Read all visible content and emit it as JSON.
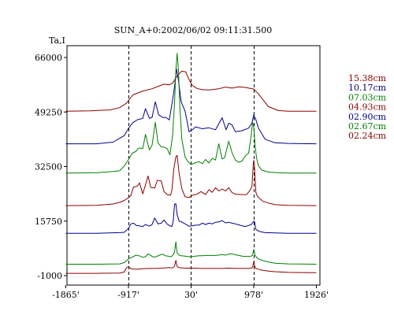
{
  "chart_data": {
    "type": "line",
    "title": "SUN_A+0:2002/06/02 09:11:31.500",
    "ylabel": "Ta,I",
    "xlabel": "",
    "xlim": [
      -1865,
      1926
    ],
    "ylim": [
      -1000,
      66000
    ],
    "x_ticks": [
      {
        "value": -1865,
        "label": "-1865'"
      },
      {
        "value": -917,
        "label": "-917'"
      },
      {
        "value": 30,
        "label": "30'"
      },
      {
        "value": 978,
        "label": "978'"
      },
      {
        "value": 1926,
        "label": "1926'"
      }
    ],
    "y_ticks": [
      {
        "value": 66000,
        "label": "66000"
      },
      {
        "value": 49250,
        "label": "49250"
      },
      {
        "value": 32500,
        "label": "32500"
      },
      {
        "value": 15750,
        "label": "15750"
      },
      {
        "value": -1000,
        "label": "-1000"
      }
    ],
    "vlines": [
      -917,
      30,
      978
    ],
    "grid": false,
    "legend_position": "right",
    "series": [
      {
        "name": "15.38cm",
        "color": "#8b0000",
        "x": [
          -1865,
          -1500,
          -1200,
          -1050,
          -950,
          -850,
          -700,
          -560,
          -450,
          -380,
          -300,
          -250,
          -180,
          -110,
          -50,
          0,
          50,
          120,
          200,
          300,
          450,
          550,
          650,
          750,
          850,
          978,
          1050,
          1200,
          1350,
          1500,
          1926
        ],
        "y": [
          49500,
          49600,
          49900,
          50600,
          51900,
          54500,
          55700,
          56400,
          57300,
          57800,
          57600,
          58100,
          60400,
          61800,
          61600,
          59200,
          57400,
          56500,
          56100,
          56000,
          56400,
          56900,
          56600,
          57000,
          56800,
          56300,
          54800,
          50900,
          49700,
          49500,
          49500
        ]
      },
      {
        "name": "10.17cm",
        "color": "#00008b",
        "x": [
          -1865,
          -1400,
          -1150,
          -980,
          -917,
          -850,
          -780,
          -700,
          -660,
          -600,
          -560,
          -510,
          -460,
          -400,
          -350,
          -300,
          -250,
          -220,
          -190,
          -160,
          -120,
          -60,
          0,
          50,
          100,
          200,
          300,
          400,
          500,
          560,
          600,
          650,
          700,
          800,
          900,
          950,
          978,
          1010,
          1050,
          1150,
          1300,
          1500,
          1926
        ],
        "y": [
          39500,
          39500,
          40000,
          42000,
          44200,
          46000,
          46900,
          47300,
          50300,
          47300,
          47600,
          52400,
          48400,
          47600,
          47600,
          46800,
          52900,
          57000,
          62500,
          58900,
          52400,
          49500,
          43200,
          43800,
          44700,
          44100,
          44400,
          43800,
          47500,
          43800,
          45800,
          45300,
          43200,
          43500,
          44300,
          45800,
          48400,
          46900,
          44300,
          40900,
          39800,
          39600,
          39500
        ]
      },
      {
        "name": "07.03cm",
        "color": "#008000",
        "x": [
          -1865,
          -1400,
          -1150,
          -1050,
          -980,
          -917,
          -860,
          -810,
          -760,
          -700,
          -660,
          -600,
          -560,
          -510,
          -470,
          -420,
          -380,
          -330,
          -290,
          -250,
          -220,
          -200,
          -180,
          -160,
          -140,
          -110,
          -60,
          -20,
          30,
          100,
          150,
          200,
          250,
          300,
          350,
          400,
          450,
          500,
          540,
          600,
          650,
          700,
          750,
          800,
          850,
          900,
          940,
          960,
          978,
          1000,
          1020,
          1050,
          1100,
          1200,
          1350,
          1500,
          1926
        ],
        "y": [
          30500,
          30600,
          31000,
          31200,
          32700,
          34600,
          36600,
          37100,
          38200,
          38000,
          42400,
          37600,
          39100,
          46100,
          39800,
          38500,
          38500,
          38000,
          36100,
          41900,
          52000,
          62000,
          67300,
          62000,
          51100,
          41000,
          35400,
          34100,
          33100,
          33700,
          34000,
          33400,
          34700,
          33600,
          35000,
          34500,
          39500,
          34800,
          35300,
          40300,
          36700,
          34500,
          33800,
          34200,
          35800,
          36600,
          42100,
          46100,
          44700,
          38800,
          35300,
          32700,
          31400,
          30800,
          30600,
          30500,
          30500
        ]
      },
      {
        "name": "04.93cm",
        "color": "#8b0000",
        "x": [
          -1865,
          -1400,
          -1150,
          -1050,
          -980,
          -917,
          -880,
          -840,
          -780,
          -750,
          -700,
          -660,
          -620,
          -580,
          -520,
          -480,
          -420,
          -380,
          -330,
          -280,
          -260,
          -230,
          -200,
          -180,
          -150,
          -110,
          -60,
          0,
          60,
          120,
          180,
          250,
          300,
          350,
          400,
          450,
          500,
          550,
          600,
          650,
          700,
          800,
          870,
          920,
          950,
          970,
          978,
          990,
          1010,
          1030,
          1060,
          1120,
          1200,
          1300,
          1500,
          1926
        ],
        "y": [
          20500,
          20600,
          21000,
          21500,
          22100,
          22900,
          23600,
          26200,
          26500,
          27500,
          24100,
          26900,
          29600,
          26100,
          25900,
          28300,
          28100,
          24800,
          23900,
          23700,
          25100,
          31800,
          35500,
          35900,
          30300,
          25700,
          23200,
          23000,
          23800,
          24000,
          24800,
          23900,
          25400,
          24600,
          26000,
          25000,
          25600,
          25000,
          26000,
          24500,
          24000,
          23900,
          23900,
          25100,
          26400,
          32800,
          34400,
          32200,
          24600,
          23500,
          22800,
          21800,
          21300,
          20800,
          20600,
          20500
        ]
      },
      {
        "name": "02.90cm",
        "color": "#00008b",
        "x": [
          -1865,
          -1400,
          -1200,
          -1050,
          -980,
          -917,
          -880,
          -840,
          -800,
          -760,
          -700,
          -660,
          -600,
          -560,
          -520,
          -470,
          -420,
          -380,
          -330,
          -290,
          -260,
          -240,
          -220,
          -200,
          -180,
          -150,
          -120,
          -60,
          0,
          50,
          100,
          150,
          200,
          250,
          300,
          350,
          400,
          450,
          500,
          550,
          600,
          650,
          700,
          750,
          800,
          850,
          900,
          940,
          978,
          990,
          1010,
          1040,
          1080,
          1150,
          1300,
          1500,
          1926
        ],
        "y": [
          12000,
          12000,
          12100,
          12200,
          12300,
          13500,
          14900,
          15100,
          14400,
          14300,
          14100,
          14700,
          14200,
          14700,
          16700,
          14900,
          15100,
          16100,
          14800,
          14300,
          14100,
          15700,
          20900,
          21100,
          17700,
          15700,
          15600,
          14900,
          14200,
          14300,
          14500,
          14500,
          15100,
          14700,
          15100,
          14900,
          15400,
          15500,
          15900,
          15200,
          15400,
          15100,
          14900,
          14600,
          14300,
          14100,
          14400,
          14700,
          15700,
          15600,
          13200,
          12800,
          12500,
          12200,
          12100,
          12000,
          12000
        ]
      },
      {
        "name": "02.67cm",
        "color": "#008000",
        "x": [
          -1865,
          -1400,
          -1200,
          -1050,
          -980,
          -917,
          -860,
          -800,
          -740,
          -700,
          -660,
          -620,
          -580,
          -540,
          -500,
          -450,
          -400,
          -360,
          -320,
          -280,
          -260,
          -240,
          -220,
          -200,
          -180,
          -150,
          -120,
          -60,
          0,
          50,
          100,
          150,
          200,
          250,
          300,
          350,
          400,
          450,
          500,
          550,
          600,
          650,
          700,
          750,
          800,
          850,
          900,
          940,
          960,
          978,
          1000,
          1030,
          1060,
          1120,
          1200,
          1300,
          1500,
          1926
        ],
        "y": [
          2500,
          2500,
          2550,
          2600,
          3000,
          4100,
          4700,
          5300,
          5000,
          4600,
          4800,
          5700,
          5200,
          4700,
          4800,
          5300,
          5600,
          5100,
          5000,
          4800,
          5000,
          5400,
          6200,
          9400,
          6000,
          5300,
          5100,
          5000,
          4800,
          4900,
          5000,
          5100,
          5100,
          5200,
          5200,
          5200,
          5200,
          5300,
          5500,
          5300,
          5600,
          5700,
          5400,
          5200,
          5000,
          4900,
          4900,
          5000,
          5200,
          7000,
          5200,
          4400,
          4000,
          3600,
          3200,
          2800,
          2600,
          2500
        ]
      },
      {
        "name": "02.24cm",
        "color": "#8b0000",
        "x": [
          -1865,
          -1400,
          -1200,
          -1050,
          -980,
          -950,
          -917,
          -880,
          -840,
          -800,
          -760,
          -700,
          -600,
          -500,
          -400,
          -350,
          -300,
          -260,
          -240,
          -220,
          -200,
          -180,
          -160,
          -120,
          -60,
          0,
          100,
          200,
          300,
          400,
          500,
          600,
          700,
          800,
          900,
          940,
          960,
          978,
          990,
          1010,
          1040,
          1100,
          1200,
          1300,
          1500,
          1926
        ],
        "y": [
          -300,
          -300,
          -250,
          -200,
          100,
          1300,
          1800,
          1100,
          1000,
          1000,
          1000,
          1100,
          1200,
          1200,
          1300,
          1400,
          1500,
          1400,
          1500,
          1900,
          3700,
          1800,
          1500,
          1400,
          1300,
          1300,
          1300,
          1200,
          1200,
          1200,
          1200,
          1300,
          1200,
          1200,
          1200,
          1300,
          1500,
          3200,
          2100,
          1200,
          1000,
          700,
          400,
          200,
          0,
          -100
        ]
      }
    ]
  }
}
